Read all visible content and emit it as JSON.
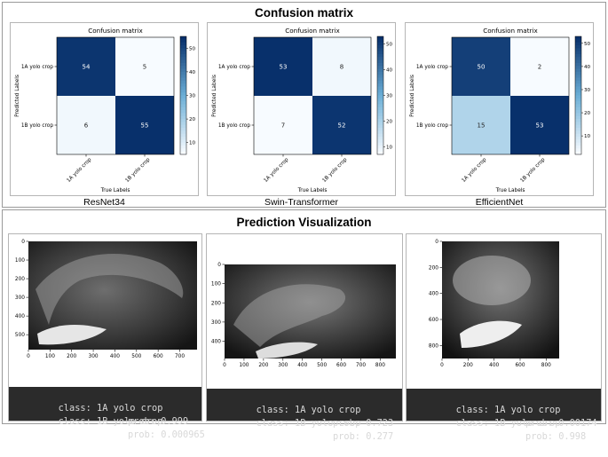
{
  "confusion_section": {
    "title": "Confusion matrix"
  },
  "prediction_section": {
    "title": "Prediction Visualization"
  },
  "colors": {
    "cm_low": "#f7fbff",
    "cm_high": "#08306b",
    "console_bg": "#2b2b2b"
  },
  "chart_data": [
    {
      "type": "heatmap",
      "model": "ResNet34",
      "title": "Confusion matrix",
      "xlabel": "True Labels",
      "ylabel": "Predicted Labels",
      "row_labels": [
        "1A yolo crop",
        "1B yolo crop"
      ],
      "col_labels": [
        "1A yolo crop",
        "1B yolo crop"
      ],
      "matrix": [
        [
          54,
          5
        ],
        [
          6,
          55
        ]
      ],
      "colorbar_ticks": [
        10,
        20,
        30,
        40,
        50
      ],
      "vmin": 5,
      "vmax": 55
    },
    {
      "type": "heatmap",
      "model": "Swin-Transformer",
      "title": "Confusion matrix",
      "xlabel": "True Labels",
      "ylabel": "Predicted Labels",
      "row_labels": [
        "1A yolo crop",
        "1B yolo crop"
      ],
      "col_labels": [
        "1A yolo crop",
        "1B yolo crop"
      ],
      "matrix": [
        [
          53,
          8
        ],
        [
          7,
          52
        ]
      ],
      "colorbar_ticks": [
        10,
        20,
        30,
        40,
        50
      ],
      "vmin": 7,
      "vmax": 53
    },
    {
      "type": "heatmap",
      "model": "EfficientNet",
      "title": "Confusion matrix",
      "xlabel": "True Labels",
      "ylabel": "Predicted Labels",
      "row_labels": [
        "1A yolo crop",
        "1B yolo crop"
      ],
      "col_labels": [
        "1A yolo crop",
        "1B yolo crop"
      ],
      "matrix": [
        [
          50,
          2
        ],
        [
          15,
          53
        ]
      ],
      "colorbar_ticks": [
        10,
        20,
        30,
        40,
        50
      ],
      "vmin": 2,
      "vmax": 53
    }
  ],
  "predictions": [
    {
      "x_ticks": [
        0,
        100,
        200,
        300,
        400,
        500,
        600,
        700
      ],
      "y_ticks": [
        0,
        100,
        200,
        300,
        400,
        500
      ],
      "x_max": 780,
      "y_max": 580,
      "rows": [
        {
          "cls": "class: 1A yolo crop",
          "prob": "prob: 0.999"
        },
        {
          "cls": "class: 1B yolo crop",
          "prob": "prob: 0.000965"
        }
      ]
    },
    {
      "x_ticks": [
        0,
        100,
        200,
        300,
        400,
        500,
        600,
        700,
        800
      ],
      "y_ticks": [
        0,
        100,
        200,
        300,
        400
      ],
      "x_max": 880,
      "y_max": 490,
      "rows": [
        {
          "cls": "class: 1A yolo crop",
          "prob": "prob: 0.723"
        },
        {
          "cls": "class: 1B yolo crop",
          "prob": "prob: 0.277"
        }
      ]
    },
    {
      "x_ticks": [
        0,
        200,
        400,
        600,
        800
      ],
      "y_ticks": [
        0,
        200,
        400,
        600,
        800
      ],
      "x_max": 900,
      "y_max": 900,
      "rows": [
        {
          "cls": "class: 1A yolo crop",
          "prob": "prob: 0.00174"
        },
        {
          "cls": "class: 1B yolo crop",
          "prob": "prob: 0.998"
        }
      ]
    }
  ]
}
